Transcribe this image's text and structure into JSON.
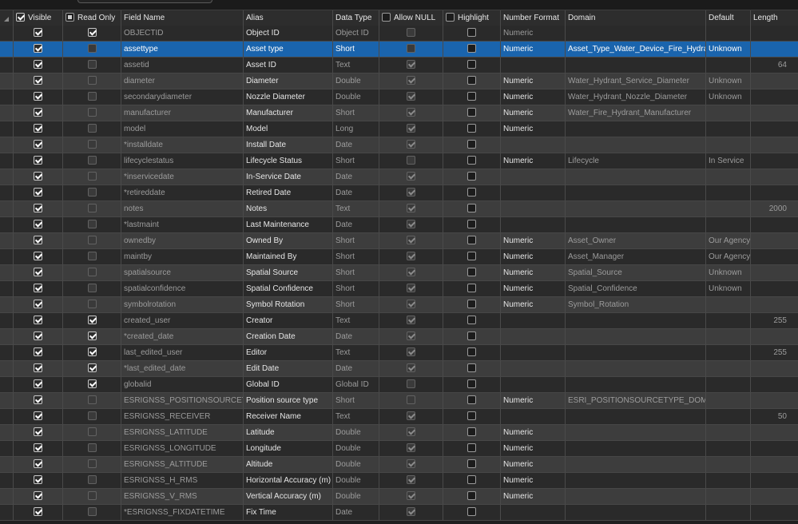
{
  "headers": {
    "visible": "Visible",
    "read_only": "Read Only",
    "field_name": "Field Name",
    "alias": "Alias",
    "data_type": "Data Type",
    "allow_null": "Allow NULL",
    "highlight": "Highlight",
    "number_format": "Number Format",
    "domain": "Domain",
    "default": "Default",
    "length": "Length"
  },
  "header_checks": {
    "visible": true,
    "read_only": "partial",
    "allow_null": false,
    "highlight": false
  },
  "colors": {
    "selection": "#1a64ad",
    "row_dark": "#2a2a2a",
    "row_light": "#3d3d3d",
    "header": "#2d2d2d"
  },
  "rows": [
    {
      "visible": true,
      "read_only": true,
      "field": "OBJECTID",
      "alias": "Object ID",
      "type": "Object ID",
      "allow_null": false,
      "allow_null_enabled": false,
      "highlight": false,
      "number_format": "Numeric",
      "domain": "",
      "default": "",
      "length": ""
    },
    {
      "visible": true,
      "read_only": false,
      "field": "assettype",
      "alias": "Asset type",
      "type": "Short",
      "allow_null": false,
      "allow_null_enabled": true,
      "highlight": false,
      "number_format": "Numeric",
      "domain": "Asset_Type_Water_Device_Fire_Hydrant",
      "default": "Unknown",
      "length": "",
      "selected": true
    },
    {
      "visible": true,
      "read_only": false,
      "field": "assetid",
      "alias": "Asset ID",
      "type": "Text",
      "allow_null": true,
      "allow_null_enabled": false,
      "highlight": false,
      "number_format": "",
      "domain": "",
      "default": "",
      "length": "64"
    },
    {
      "visible": true,
      "read_only": false,
      "field": "diameter",
      "alias": "Diameter",
      "type": "Double",
      "allow_null": true,
      "allow_null_enabled": false,
      "highlight": false,
      "number_format": "Numeric",
      "domain": "Water_Hydrant_Service_Diameter",
      "default": "Unknown",
      "length": ""
    },
    {
      "visible": true,
      "read_only": false,
      "field": "secondarydiameter",
      "alias": "Nozzle Diameter",
      "type": "Double",
      "allow_null": true,
      "allow_null_enabled": false,
      "highlight": false,
      "number_format": "Numeric",
      "domain": "Water_Hydrant_Nozzle_Diameter",
      "default": "Unknown",
      "length": ""
    },
    {
      "visible": true,
      "read_only": false,
      "field": "manufacturer",
      "alias": "Manufacturer",
      "type": "Short",
      "allow_null": true,
      "allow_null_enabled": false,
      "highlight": false,
      "number_format": "Numeric",
      "domain": "Water_Fire_Hydrant_Manufacturer",
      "default": "",
      "length": ""
    },
    {
      "visible": true,
      "read_only": false,
      "field": "model",
      "alias": "Model",
      "type": "Long",
      "allow_null": true,
      "allow_null_enabled": false,
      "highlight": false,
      "number_format": "Numeric",
      "domain": "",
      "default": "",
      "length": ""
    },
    {
      "visible": true,
      "read_only": false,
      "field": "*installdate",
      "alias": "Install Date",
      "type": "Date",
      "allow_null": true,
      "allow_null_enabled": false,
      "highlight": false,
      "number_format": "",
      "domain": "",
      "default": "",
      "length": ""
    },
    {
      "visible": true,
      "read_only": false,
      "field": "lifecyclestatus",
      "alias": "Lifecycle Status",
      "type": "Short",
      "allow_null": false,
      "allow_null_enabled": true,
      "highlight": false,
      "number_format": "Numeric",
      "domain": "Lifecycle",
      "default": "In Service",
      "length": ""
    },
    {
      "visible": true,
      "read_only": false,
      "field": "*inservicedate",
      "alias": "In-Service Date",
      "type": "Date",
      "allow_null": true,
      "allow_null_enabled": false,
      "highlight": false,
      "number_format": "",
      "domain": "",
      "default": "",
      "length": ""
    },
    {
      "visible": true,
      "read_only": false,
      "field": "*retireddate",
      "alias": "Retired Date",
      "type": "Date",
      "allow_null": true,
      "allow_null_enabled": false,
      "highlight": false,
      "number_format": "",
      "domain": "",
      "default": "",
      "length": ""
    },
    {
      "visible": true,
      "read_only": false,
      "field": "notes",
      "alias": "Notes",
      "type": "Text",
      "allow_null": true,
      "allow_null_enabled": false,
      "highlight": false,
      "number_format": "",
      "domain": "",
      "default": "",
      "length": "2000"
    },
    {
      "visible": true,
      "read_only": false,
      "field": "*lastmaint",
      "alias": "Last Maintenance",
      "type": "Date",
      "allow_null": true,
      "allow_null_enabled": false,
      "highlight": false,
      "number_format": "",
      "domain": "",
      "default": "",
      "length": ""
    },
    {
      "visible": true,
      "read_only": false,
      "field": "ownedby",
      "alias": "Owned By",
      "type": "Short",
      "allow_null": true,
      "allow_null_enabled": false,
      "highlight": false,
      "number_format": "Numeric",
      "domain": "Asset_Owner",
      "default": "Our Agency",
      "length": ""
    },
    {
      "visible": true,
      "read_only": false,
      "field": "maintby",
      "alias": "Maintained By",
      "type": "Short",
      "allow_null": true,
      "allow_null_enabled": false,
      "highlight": false,
      "number_format": "Numeric",
      "domain": "Asset_Manager",
      "default": "Our Agency",
      "length": ""
    },
    {
      "visible": true,
      "read_only": false,
      "field": "spatialsource",
      "alias": "Spatial Source",
      "type": "Short",
      "allow_null": true,
      "allow_null_enabled": false,
      "highlight": false,
      "number_format": "Numeric",
      "domain": "Spatial_Source",
      "default": "Unknown",
      "length": ""
    },
    {
      "visible": true,
      "read_only": false,
      "field": "spatialconfidence",
      "alias": "Spatial Confidence",
      "type": "Short",
      "allow_null": true,
      "allow_null_enabled": false,
      "highlight": false,
      "number_format": "Numeric",
      "domain": "Spatial_Confidence",
      "default": "Unknown",
      "length": ""
    },
    {
      "visible": true,
      "read_only": false,
      "field": "symbolrotation",
      "alias": "Symbol Rotation",
      "type": "Short",
      "allow_null": true,
      "allow_null_enabled": false,
      "highlight": false,
      "number_format": "Numeric",
      "domain": "Symbol_Rotation",
      "default": "",
      "length": ""
    },
    {
      "visible": true,
      "read_only": true,
      "field": "created_user",
      "alias": "Creator",
      "type": "Text",
      "allow_null": true,
      "allow_null_enabled": false,
      "highlight": false,
      "number_format": "",
      "domain": "",
      "default": "",
      "length": "255"
    },
    {
      "visible": true,
      "read_only": true,
      "field": "*created_date",
      "alias": "Creation Date",
      "type": "Date",
      "allow_null": true,
      "allow_null_enabled": false,
      "highlight": false,
      "number_format": "",
      "domain": "",
      "default": "",
      "length": ""
    },
    {
      "visible": true,
      "read_only": true,
      "field": "last_edited_user",
      "alias": "Editor",
      "type": "Text",
      "allow_null": true,
      "allow_null_enabled": false,
      "highlight": false,
      "number_format": "",
      "domain": "",
      "default": "",
      "length": "255"
    },
    {
      "visible": true,
      "read_only": true,
      "field": "*last_edited_date",
      "alias": "Edit Date",
      "type": "Date",
      "allow_null": true,
      "allow_null_enabled": false,
      "highlight": false,
      "number_format": "",
      "domain": "",
      "default": "",
      "length": ""
    },
    {
      "visible": true,
      "read_only": true,
      "field": "globalid",
      "alias": "Global ID",
      "type": "Global ID",
      "allow_null": false,
      "allow_null_enabled": false,
      "highlight": false,
      "number_format": "",
      "domain": "",
      "default": "",
      "length": ""
    },
    {
      "visible": true,
      "read_only": false,
      "field": "ESRIGNSS_POSITIONSOURCETYPE",
      "alias": "Position source type",
      "type": "Short",
      "allow_null": false,
      "allow_null_enabled": true,
      "highlight": false,
      "number_format": "Numeric",
      "domain": "ESRI_POSITIONSOURCETYPE_DOMAIN",
      "default": "",
      "length": ""
    },
    {
      "visible": true,
      "read_only": false,
      "field": "ESRIGNSS_RECEIVER",
      "alias": "Receiver Name",
      "type": "Text",
      "allow_null": true,
      "allow_null_enabled": false,
      "highlight": false,
      "number_format": "",
      "domain": "",
      "default": "",
      "length": "50"
    },
    {
      "visible": true,
      "read_only": false,
      "field": "ESRIGNSS_LATITUDE",
      "alias": "Latitude",
      "type": "Double",
      "allow_null": true,
      "allow_null_enabled": false,
      "highlight": false,
      "number_format": "Numeric",
      "domain": "",
      "default": "",
      "length": ""
    },
    {
      "visible": true,
      "read_only": false,
      "field": "ESRIGNSS_LONGITUDE",
      "alias": "Longitude",
      "type": "Double",
      "allow_null": true,
      "allow_null_enabled": false,
      "highlight": false,
      "number_format": "Numeric",
      "domain": "",
      "default": "",
      "length": ""
    },
    {
      "visible": true,
      "read_only": false,
      "field": "ESRIGNSS_ALTITUDE",
      "alias": "Altitude",
      "type": "Double",
      "allow_null": true,
      "allow_null_enabled": false,
      "highlight": false,
      "number_format": "Numeric",
      "domain": "",
      "default": "",
      "length": ""
    },
    {
      "visible": true,
      "read_only": false,
      "field": "ESRIGNSS_H_RMS",
      "alias": "Horizontal Accuracy (m)",
      "type": "Double",
      "allow_null": true,
      "allow_null_enabled": false,
      "highlight": false,
      "number_format": "Numeric",
      "domain": "",
      "default": "",
      "length": ""
    },
    {
      "visible": true,
      "read_only": false,
      "field": "ESRIGNSS_V_RMS",
      "alias": "Vertical Accuracy (m)",
      "type": "Double",
      "allow_null": true,
      "allow_null_enabled": false,
      "highlight": false,
      "number_format": "Numeric",
      "domain": "",
      "default": "",
      "length": ""
    },
    {
      "visible": true,
      "read_only": false,
      "field": "*ESRIGNSS_FIXDATETIME",
      "alias": "Fix Time",
      "type": "Date",
      "allow_null": true,
      "allow_null_enabled": false,
      "highlight": false,
      "number_format": "",
      "domain": "",
      "default": "",
      "length": ""
    }
  ]
}
